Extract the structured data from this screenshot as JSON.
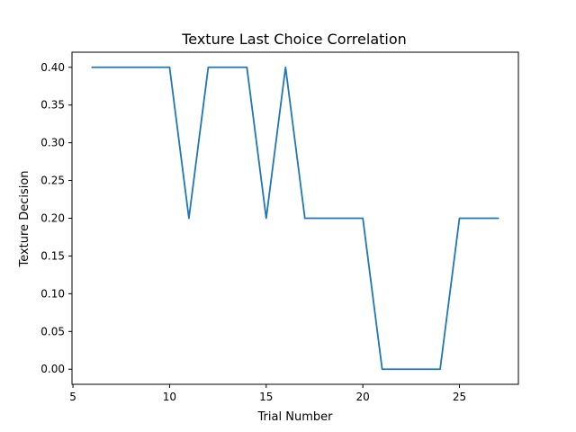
{
  "chart_data": {
    "type": "line",
    "title": "Texture Last Choice Correlation",
    "xlabel": "Trial Number",
    "ylabel": "Texture Decision",
    "xlim": [
      4.95,
      28.05
    ],
    "ylim": [
      -0.02,
      0.42
    ],
    "xticks": [
      5,
      10,
      15,
      20,
      25
    ],
    "xtick_labels": [
      "5",
      "10",
      "15",
      "20",
      "25"
    ],
    "yticks": [
      0.0,
      0.05,
      0.1,
      0.15,
      0.2,
      0.25,
      0.3,
      0.35,
      0.4
    ],
    "ytick_labels": [
      "0.00",
      "0.05",
      "0.10",
      "0.15",
      "0.20",
      "0.25",
      "0.30",
      "0.35",
      "0.40"
    ],
    "grid": false,
    "series": [
      {
        "color": "#1f77b4",
        "x": [
          6,
          7,
          8,
          9,
          10,
          11,
          12,
          13,
          14,
          15,
          16,
          17,
          18,
          19,
          20,
          21,
          22,
          23,
          24,
          25,
          26,
          27
        ],
        "y": [
          0.4,
          0.4,
          0.4,
          0.4,
          0.4,
          0.2,
          0.4,
          0.4,
          0.4,
          0.2,
          0.4,
          0.2,
          0.2,
          0.2,
          0.2,
          0.0,
          0.0,
          0.0,
          0.0,
          0.2,
          0.2,
          0.2
        ]
      }
    ]
  }
}
